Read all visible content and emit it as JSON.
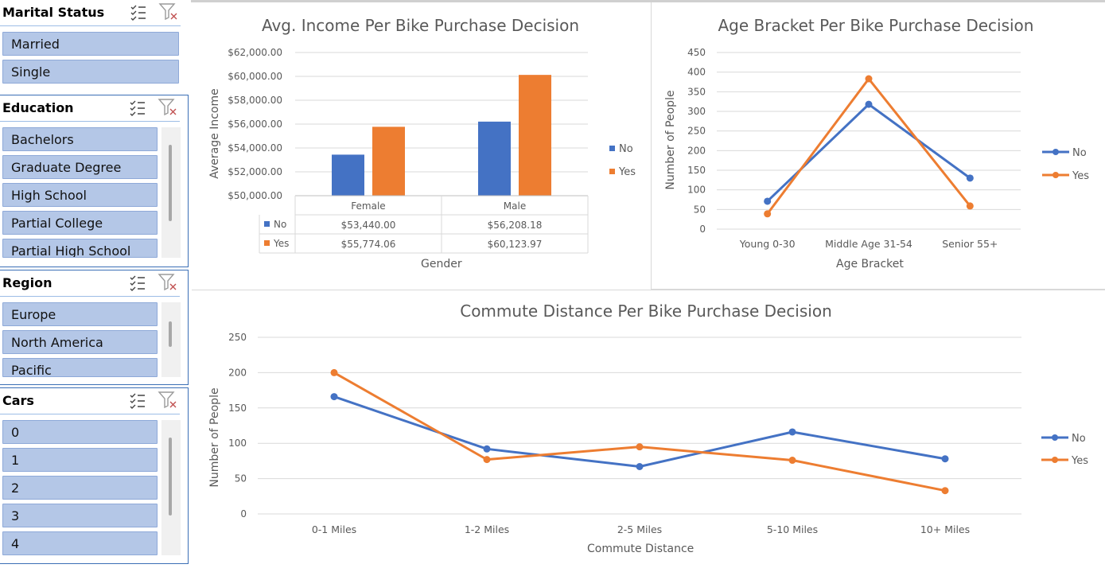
{
  "slicers": [
    {
      "title": "Marital Status",
      "items": [
        "Married",
        "Single"
      ]
    },
    {
      "title": "Education",
      "items": [
        "Bachelors",
        "Graduate Degree",
        "High School",
        "Partial College",
        "Partial High School"
      ]
    },
    {
      "title": "Region",
      "items": [
        "Europe",
        "North America",
        "Pacific"
      ]
    },
    {
      "title": "Cars",
      "items": [
        "0",
        "1",
        "2",
        "3",
        "4"
      ]
    }
  ],
  "icons": {
    "multiselect": "multi-select-icon",
    "clear_filter": "clear-filter-icon"
  },
  "colors": {
    "no": "#4472c4",
    "yes": "#ed7d31",
    "slicer_item": "#b4c7e7"
  },
  "chart_data": [
    {
      "type": "bar",
      "title": "Avg. Income Per Bike Purchase Decision",
      "xlabel": "Gender",
      "ylabel": "Average Income",
      "categories": [
        "Female",
        "Male"
      ],
      "series": [
        {
          "name": "No",
          "values": [
            53440.0,
            56208.18
          ],
          "labels": [
            "$53,440.00",
            "$56,208.18"
          ]
        },
        {
          "name": "Yes",
          "values": [
            55774.06,
            60123.97
          ],
          "labels": [
            "$55,774.06",
            "$60,123.97"
          ]
        }
      ],
      "ylim": [
        50000,
        62000
      ],
      "yticks": [
        "$50,000.00",
        "$52,000.00",
        "$54,000.00",
        "$56,000.00",
        "$58,000.00",
        "$60,000.00",
        "$62,000.00"
      ],
      "data_table": true,
      "legend": "right"
    },
    {
      "type": "line",
      "title": "Age Bracket Per Bike Purchase Decision",
      "xlabel": "Age Bracket",
      "ylabel": "Number of People",
      "categories": [
        "Young 0-30",
        "Middle Age 31-54",
        "Senior 55+"
      ],
      "series": [
        {
          "name": "No",
          "values": [
            71,
            318,
            130
          ]
        },
        {
          "name": "Yes",
          "values": [
            39,
            383,
            59
          ]
        }
      ],
      "ylim": [
        0,
        450
      ],
      "yticks": [
        "0",
        "50",
        "100",
        "150",
        "200",
        "250",
        "300",
        "350",
        "400",
        "450"
      ],
      "legend": "right"
    },
    {
      "type": "line",
      "title": "Commute Distance Per Bike Purchase Decision",
      "xlabel": "Commute Distance",
      "ylabel": "Number of People",
      "categories": [
        "0-1 Miles",
        "1-2 Miles",
        "2-5 Miles",
        "5-10 Miles",
        "10+ Miles"
      ],
      "series": [
        {
          "name": "No",
          "values": [
            166,
            92,
            67,
            116,
            78
          ]
        },
        {
          "name": "Yes",
          "values": [
            200,
            77,
            95,
            76,
            33
          ]
        }
      ],
      "ylim": [
        0,
        250
      ],
      "yticks": [
        "0",
        "50",
        "100",
        "150",
        "200",
        "250"
      ],
      "legend": "right"
    }
  ]
}
